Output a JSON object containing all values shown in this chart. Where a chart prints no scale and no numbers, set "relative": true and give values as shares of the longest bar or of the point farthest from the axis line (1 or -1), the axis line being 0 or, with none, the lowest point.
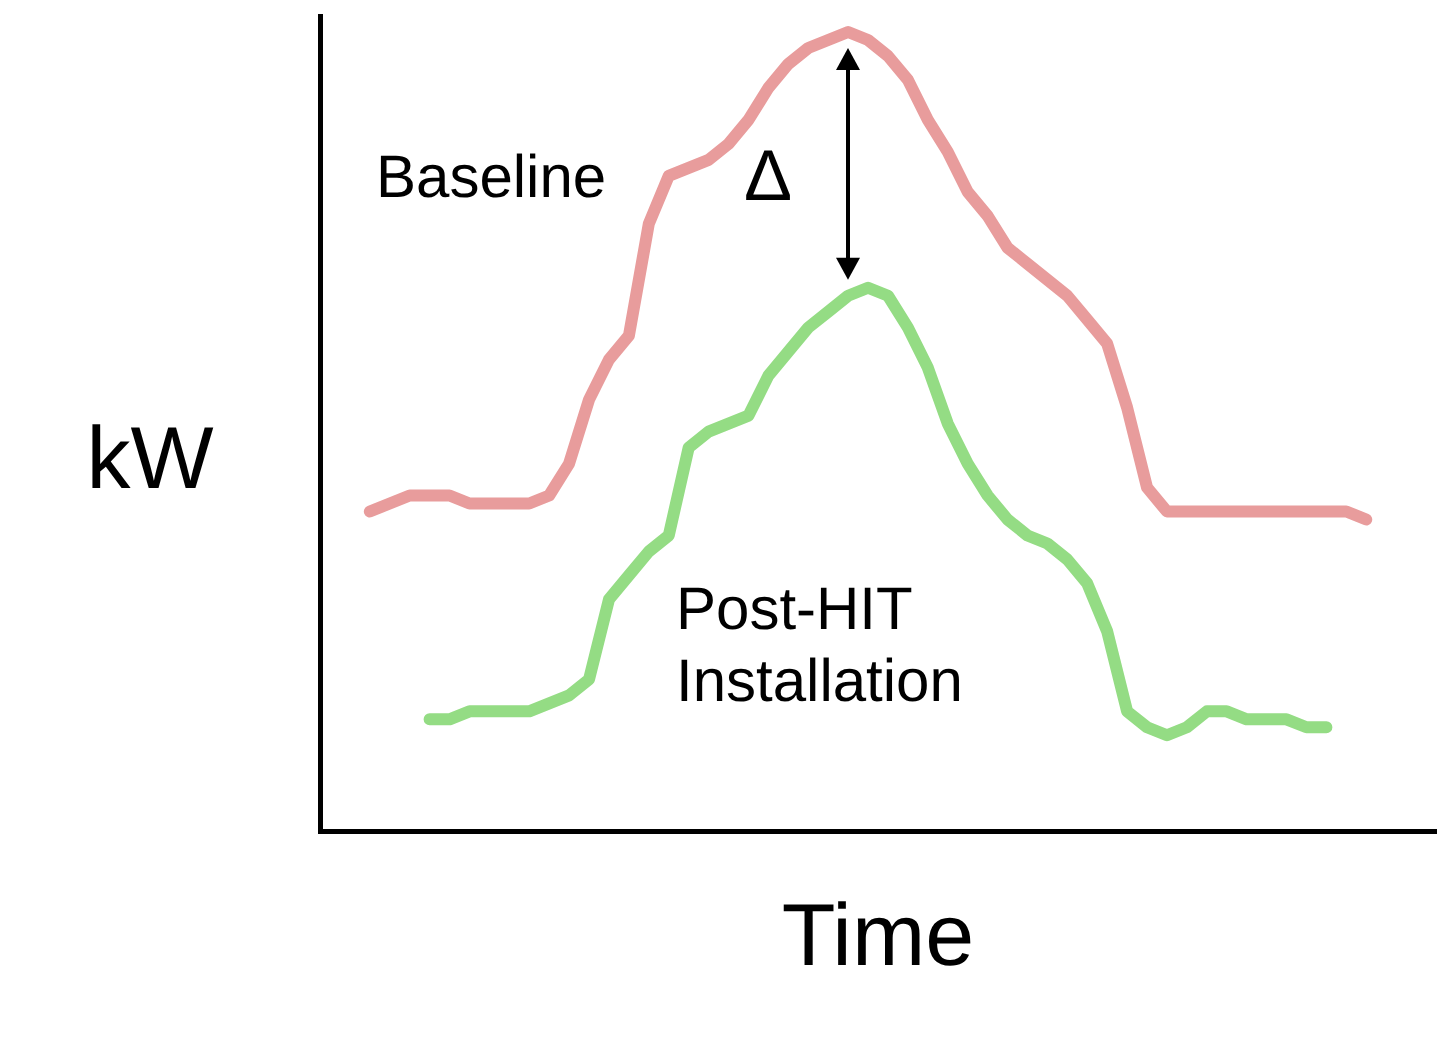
{
  "chart_data": {
    "type": "line",
    "relative": true,
    "xlabel": "Time",
    "ylabel": "kW",
    "grid": false,
    "legend": false,
    "marker": "none",
    "line_style": "solid",
    "annotations": [
      "Δ"
    ],
    "categories": [
      null,
      null,
      null,
      null,
      null,
      null,
      null,
      null,
      null,
      null,
      null,
      null,
      null,
      null,
      null,
      null,
      null,
      null,
      null,
      null,
      null,
      null,
      null,
      null,
      null,
      null,
      null,
      null,
      null,
      null,
      null,
      null,
      null,
      null,
      null,
      null,
      null,
      null,
      null,
      null,
      null,
      null,
      null,
      null,
      null,
      null,
      null,
      null,
      null,
      null,
      null,
      null,
      null,
      null,
      null,
      null
    ],
    "series": [
      {
        "name": "Baseline",
        "color": "#e89c9c",
        "values": [
          null,
          null,
          0.4,
          0.41,
          0.42,
          0.42,
          0.42,
          0.41,
          0.41,
          0.41,
          0.41,
          0.42,
          0.46,
          0.54,
          0.59,
          0.62,
          0.76,
          0.82,
          0.83,
          0.84,
          0.86,
          0.89,
          0.93,
          0.96,
          0.98,
          0.99,
          1.0,
          0.99,
          0.97,
          0.94,
          0.89,
          0.85,
          0.8,
          0.77,
          0.73,
          0.71,
          0.69,
          0.67,
          0.64,
          0.61,
          0.53,
          0.43,
          0.4,
          0.4,
          0.4,
          0.4,
          0.4,
          0.4,
          0.4,
          0.4,
          0.4,
          0.4,
          0.39,
          null,
          null,
          null
        ]
      },
      {
        "name": "Post-HIT Installation",
        "color": "#94dc84",
        "values": [
          null,
          null,
          null,
          null,
          null,
          0.14,
          0.14,
          0.15,
          0.15,
          0.15,
          0.15,
          0.16,
          0.17,
          0.19,
          0.29,
          0.32,
          0.35,
          0.37,
          0.48,
          0.5,
          0.51,
          0.52,
          0.57,
          0.6,
          0.63,
          0.65,
          0.67,
          0.68,
          0.67,
          0.63,
          0.58,
          0.51,
          0.46,
          0.42,
          0.39,
          0.37,
          0.36,
          0.34,
          0.31,
          0.25,
          0.15,
          0.13,
          0.12,
          0.13,
          0.15,
          0.15,
          0.14,
          0.14,
          0.14,
          0.13,
          0.13,
          null,
          null,
          null,
          null,
          null
        ]
      }
    ]
  }
}
